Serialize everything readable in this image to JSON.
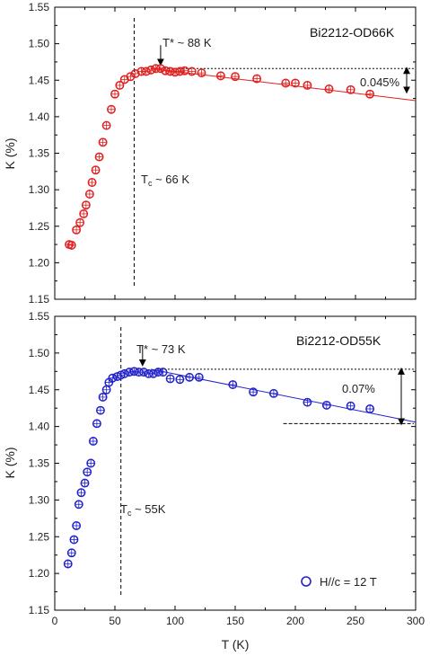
{
  "chart_data": [
    {
      "type": "scatter",
      "title": "Bi2212-OD66K",
      "xlabel": "",
      "ylabel": "K (%)",
      "xlim": [
        0,
        300
      ],
      "ylim": [
        1.15,
        1.55
      ],
      "x_ticks": [],
      "y_ticks": [
        "1.15",
        "1.20",
        "1.25",
        "1.30",
        "1.35",
        "1.40",
        "1.45",
        "1.50",
        "1.55"
      ],
      "series": [
        {
          "color": "#e02020",
          "x": [
            12,
            14,
            18,
            21,
            24,
            26,
            29,
            31,
            34,
            37,
            40,
            43,
            47,
            50,
            54,
            58,
            63,
            67,
            72,
            76,
            80,
            84,
            88,
            92,
            96,
            100,
            104,
            108,
            114,
            122,
            138,
            150,
            168,
            192,
            200,
            210,
            228,
            246,
            262
          ],
          "y": [
            1.225,
            1.224,
            1.245,
            1.255,
            1.267,
            1.279,
            1.294,
            1.31,
            1.327,
            1.345,
            1.365,
            1.388,
            1.41,
            1.431,
            1.443,
            1.451,
            1.455,
            1.459,
            1.462,
            1.462,
            1.464,
            1.466,
            1.466,
            1.463,
            1.462,
            1.461,
            1.462,
            1.463,
            1.462,
            1.46,
            1.456,
            1.455,
            1.452,
            1.446,
            1.446,
            1.443,
            1.438,
            1.437,
            1.431
          ]
        }
      ],
      "fit_line": {
        "x": [
          80,
          300
        ],
        "y": [
          1.466,
          1.422
        ]
      },
      "reference_lines": {
        "tc_x": 66,
        "tstar_y": 1.466
      },
      "annotations": {
        "tstar": "T* ~ 88 K",
        "tc": "Tₓ ~ 66 K",
        "delta": "0.045%"
      }
    },
    {
      "type": "scatter",
      "title": "Bi2212-OD55K",
      "xlabel": "T (K)",
      "ylabel": "K (%)",
      "xlim": [
        0,
        300
      ],
      "ylim": [
        1.15,
        1.55
      ],
      "x_ticks": [
        "0",
        "50",
        "100",
        "150",
        "200",
        "250",
        "300"
      ],
      "y_ticks": [
        "1.15",
        "1.20",
        "1.25",
        "1.30",
        "1.35",
        "1.40",
        "1.45",
        "1.50",
        "1.55"
      ],
      "series": [
        {
          "name": "H//c = 12 T",
          "color": "#2222cc",
          "x": [
            11,
            14,
            16,
            18,
            20,
            22,
            25,
            27,
            30,
            32,
            35,
            38,
            40,
            43,
            45,
            48,
            52,
            55,
            58,
            62,
            66,
            70,
            74,
            78,
            82,
            86,
            90,
            96,
            104,
            112,
            120,
            148,
            165,
            182,
            210,
            226,
            246,
            262
          ],
          "y": [
            1.213,
            1.228,
            1.246,
            1.265,
            1.294,
            1.31,
            1.323,
            1.338,
            1.35,
            1.38,
            1.404,
            1.422,
            1.44,
            1.45,
            1.46,
            1.466,
            1.468,
            1.47,
            1.472,
            1.474,
            1.475,
            1.474,
            1.474,
            1.472,
            1.472,
            1.474,
            1.474,
            1.465,
            1.464,
            1.467,
            1.467,
            1.457,
            1.447,
            1.445,
            1.433,
            1.429,
            1.428,
            1.424
          ]
        }
      ],
      "fit_line": {
        "x": [
          80,
          300
        ],
        "y": [
          1.478,
          1.406
        ]
      },
      "reference_lines": {
        "tc_x": 55,
        "tstar_y": 1.478,
        "lower_y": 1.404
      },
      "annotations": {
        "tstar": "T* ~ 73 K",
        "tc": "Tₓ ~ 55K",
        "delta": "0.07%"
      }
    }
  ]
}
